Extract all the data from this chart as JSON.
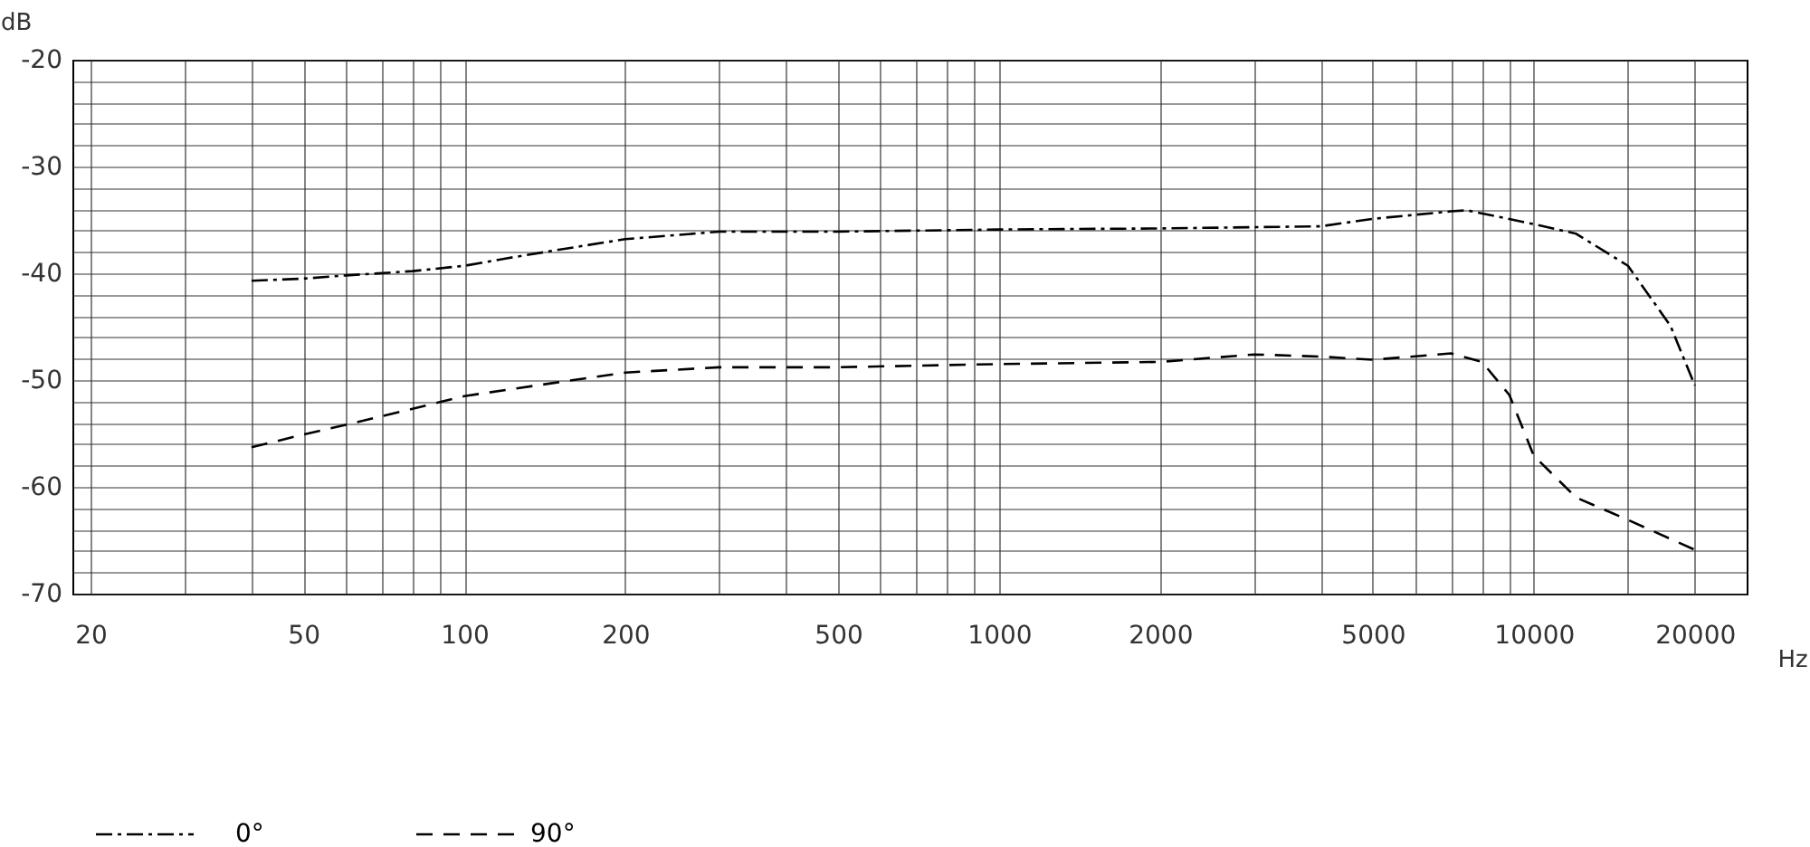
{
  "chart_data": {
    "type": "line",
    "xlabel": "Hz",
    "ylabel": "dB",
    "log": "x",
    "grid": true,
    "legend": "bottom left",
    "xlim": [
      18.5,
      25000
    ],
    "ylim": [
      -70,
      -20
    ],
    "xticks": [
      20,
      {
        "value": 30,
        "label": null
      },
      {
        "value": 40,
        "label": null
      },
      50,
      {
        "value": 60,
        "label": null
      },
      {
        "value": 70,
        "label": null
      },
      {
        "value": 80,
        "label": null
      },
      {
        "value": 90,
        "label": null
      },
      100,
      200,
      {
        "value": 300,
        "label": null
      },
      {
        "value": 400,
        "label": null
      },
      500,
      {
        "value": 600,
        "label": null
      },
      {
        "value": 700,
        "label": null
      },
      {
        "value": 800,
        "label": null
      },
      {
        "value": 900,
        "label": null
      },
      1000,
      2000,
      {
        "value": 3000,
        "label": null
      },
      {
        "value": 4000,
        "label": null
      },
      5000,
      {
        "value": 6000,
        "label": null
      },
      {
        "value": 7000,
        "label": null
      },
      {
        "value": 8000,
        "label": null
      },
      {
        "value": 9000,
        "label": null
      },
      10000,
      {
        "value": 15000,
        "label": null
      },
      20000
    ],
    "yticks": [
      -70,
      {
        "value": -68,
        "label": null
      },
      {
        "value": -66,
        "label": null
      },
      {
        "value": -64,
        "label": null
      },
      {
        "value": -62,
        "label": null
      },
      -60,
      {
        "value": -58,
        "label": null
      },
      {
        "value": -56,
        "label": null
      },
      {
        "value": -54,
        "label": null
      },
      {
        "value": -52,
        "label": null
      },
      -50,
      {
        "value": -48,
        "label": null
      },
      {
        "value": -46,
        "label": null
      },
      {
        "value": -44,
        "label": null
      },
      {
        "value": -42,
        "label": null
      },
      -40,
      {
        "value": -38,
        "label": null
      },
      {
        "value": -36,
        "label": null
      },
      {
        "value": -34,
        "label": null
      },
      {
        "value": -32,
        "label": null
      },
      -30,
      {
        "value": -28,
        "label": null
      },
      {
        "value": -26,
        "label": null
      },
      {
        "value": -24,
        "label": null
      },
      {
        "value": -22,
        "label": null
      },
      -20
    ],
    "series": [
      {
        "name": "0°",
        "color": "#000000",
        "line_style": "dashdot",
        "x": [
          40,
          50,
          60,
          80,
          100,
          120,
          150,
          200,
          300,
          500,
          1000,
          2000,
          4000,
          5000,
          7000,
          7500,
          10000,
          12000,
          15000,
          18000,
          20000
        ],
        "values": [
          -40.7,
          -40.5,
          -40.2,
          -39.8,
          -39.3,
          -38.6,
          -37.8,
          -36.8,
          -36.1,
          -36.1,
          -35.9,
          -35.8,
          -35.6,
          -34.9,
          -34.2,
          -34.1,
          -35.4,
          -36.3,
          -39.3,
          -44.9,
          -50.5
        ]
      },
      {
        "name": "90°",
        "color": "#000000",
        "line_style": "dashed",
        "x": [
          40,
          50,
          60,
          80,
          100,
          150,
          200,
          300,
          500,
          1000,
          2000,
          3000,
          4000,
          5000,
          7000,
          8000,
          9000,
          10000,
          12000,
          15000,
          20000
        ],
        "values": [
          -56.3,
          -55.1,
          -54.2,
          -52.7,
          -51.5,
          -50.2,
          -49.3,
          -48.8,
          -48.8,
          -48.5,
          -48.3,
          -47.6,
          -47.8,
          -48.1,
          -47.5,
          -48.3,
          -51.4,
          -57.1,
          -61.0,
          -63.1,
          -65.9
        ]
      }
    ]
  }
}
